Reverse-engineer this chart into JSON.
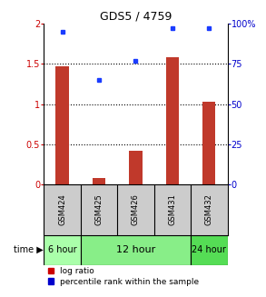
{
  "title": "GDS5 / 4759",
  "samples": [
    "GSM424",
    "GSM425",
    "GSM426",
    "GSM431",
    "GSM432"
  ],
  "log_ratio": [
    1.47,
    0.08,
    0.42,
    1.58,
    1.03
  ],
  "percentile_rank": [
    95,
    65,
    77,
    97,
    97
  ],
  "bar_color": "#C0392B",
  "dot_color": "#1A3CFF",
  "ylim_left": [
    0,
    2
  ],
  "ylim_right": [
    0,
    100
  ],
  "yticks_left": [
    0,
    0.5,
    1.0,
    1.5,
    2.0
  ],
  "yticks_right": [
    0,
    25,
    50,
    75,
    100
  ],
  "ytick_labels_left": [
    "0",
    "0.5",
    "1",
    "1.5",
    "2"
  ],
  "ytick_labels_right": [
    "0",
    "25",
    "50",
    "75",
    "100%"
  ],
  "dotted_lines": [
    0.5,
    1.0,
    1.5
  ],
  "background_color": "#ffffff",
  "gray_color": "#CCCCCC",
  "label_color_left": "#CC0000",
  "label_color_right": "#0000CC",
  "time_regions": [
    {
      "start": 0,
      "end": 0,
      "label": "6 hour",
      "color": "#AAFFAA",
      "fontsize": 7
    },
    {
      "start": 1,
      "end": 3,
      "label": "12 hour",
      "color": "#88EE88",
      "fontsize": 8
    },
    {
      "start": 4,
      "end": 4,
      "label": "24 hour",
      "color": "#55DD55",
      "fontsize": 7
    }
  ],
  "legend_items": [
    {
      "label": "log ratio",
      "color": "#CC0000"
    },
    {
      "label": "percentile rank within the sample",
      "color": "#0000CC"
    }
  ],
  "bar_width": 0.35
}
